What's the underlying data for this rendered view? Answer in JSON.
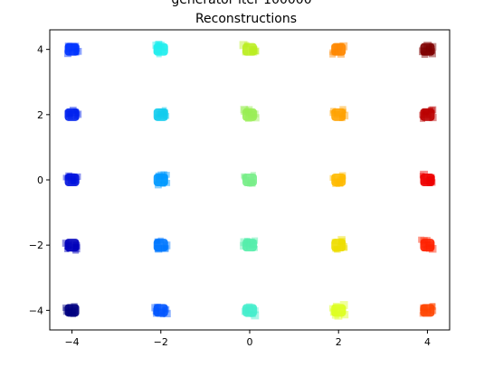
{
  "chart_data": {
    "type": "scatter",
    "title": "Reconstructions",
    "suptitle": "generator iter 100000",
    "xlim": [
      -4.5,
      4.5
    ],
    "ylim": [
      -4.6,
      4.6
    ],
    "xticks": [
      -4,
      -2,
      0,
      2,
      4
    ],
    "yticks": [
      4,
      2,
      0,
      -2,
      -4
    ],
    "xtick_labels": [
      "−4",
      "−2",
      "0",
      "2",
      "4"
    ],
    "ytick_labels": [
      "4",
      "2",
      "0",
      "−2",
      "−4"
    ],
    "grid": false,
    "legend": "none",
    "clusters": [
      {
        "x": -4,
        "y": 4,
        "color": "#0033ff"
      },
      {
        "x": -4,
        "y": 2,
        "color": "#0022ee"
      },
      {
        "x": -4,
        "y": 0,
        "color": "#0011dd"
      },
      {
        "x": -4,
        "y": -2,
        "color": "#0000bb"
      },
      {
        "x": -4,
        "y": -4,
        "color": "#000080"
      },
      {
        "x": -2,
        "y": 4,
        "color": "#22eeee"
      },
      {
        "x": -2,
        "y": 2,
        "color": "#11ccee"
      },
      {
        "x": -2,
        "y": 0,
        "color": "#0099ff"
      },
      {
        "x": -2,
        "y": -2,
        "color": "#0077ff"
      },
      {
        "x": -2,
        "y": -4,
        "color": "#0055ff"
      },
      {
        "x": 0,
        "y": 4,
        "color": "#bbee22"
      },
      {
        "x": 0,
        "y": 2,
        "color": "#99ee55"
      },
      {
        "x": 0,
        "y": 0,
        "color": "#77ee88"
      },
      {
        "x": 0,
        "y": -2,
        "color": "#55eeaa"
      },
      {
        "x": 0,
        "y": -4,
        "color": "#44eecc"
      },
      {
        "x": 2,
        "y": 4,
        "color": "#ff8800"
      },
      {
        "x": 2,
        "y": 2,
        "color": "#ffa200"
      },
      {
        "x": 2,
        "y": 0,
        "color": "#ffbb00"
      },
      {
        "x": 2,
        "y": -2,
        "color": "#eedd00"
      },
      {
        "x": 2,
        "y": -4,
        "color": "#ddff22"
      },
      {
        "x": 4,
        "y": 4,
        "color": "#7f0000"
      },
      {
        "x": 4,
        "y": 2,
        "color": "#bb0000"
      },
      {
        "x": 4,
        "y": 0,
        "color": "#ee0000"
      },
      {
        "x": 4,
        "y": -2,
        "color": "#ff2200"
      },
      {
        "x": 4,
        "y": -4,
        "color": "#ff4400"
      }
    ]
  }
}
